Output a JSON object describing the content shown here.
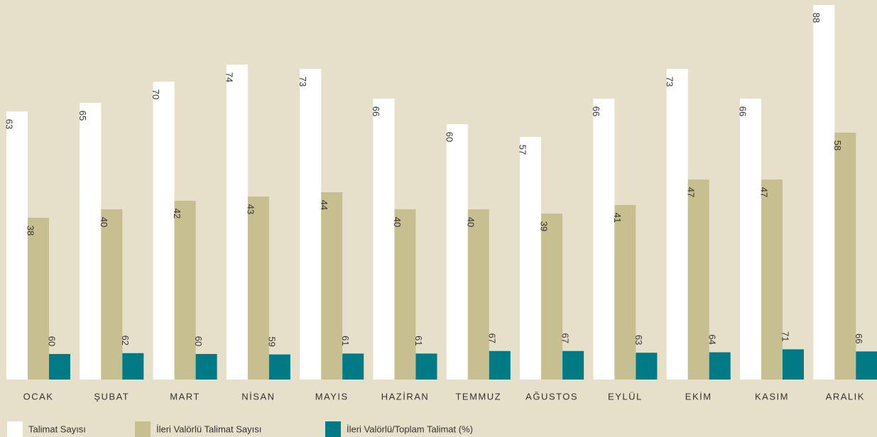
{
  "chart_data": {
    "type": "bar",
    "categories": [
      "OCAK",
      "ŞUBAT",
      "MART",
      "NİSAN",
      "MAYIS",
      "HAZİRAN",
      "TEMMUZ",
      "AĞUSTOS",
      "EYLÜL",
      "EKİM",
      "KASIM",
      "ARALIK"
    ],
    "series": [
      {
        "name": "Talimat Sayısı",
        "color": "#ffffff",
        "values": [
          63,
          65,
          70,
          74,
          73,
          66,
          60,
          57,
          66,
          73,
          66,
          88
        ]
      },
      {
        "name": "İleri Valörlü Talimat Sayısı",
        "color": "#c8bf91",
        "values": [
          38,
          40,
          42,
          43,
          44,
          40,
          40,
          39,
          41,
          47,
          47,
          58
        ]
      },
      {
        "name": "İleri Valörlü/Toplam Talimat (%)",
        "color": "#007b85",
        "axis": "y2",
        "values": [
          60,
          62,
          60,
          59,
          61,
          61,
          67,
          67,
          63,
          64,
          71,
          66
        ]
      }
    ],
    "ylim": [
      0,
      88
    ],
    "y2lim": [
      0,
      880
    ]
  }
}
